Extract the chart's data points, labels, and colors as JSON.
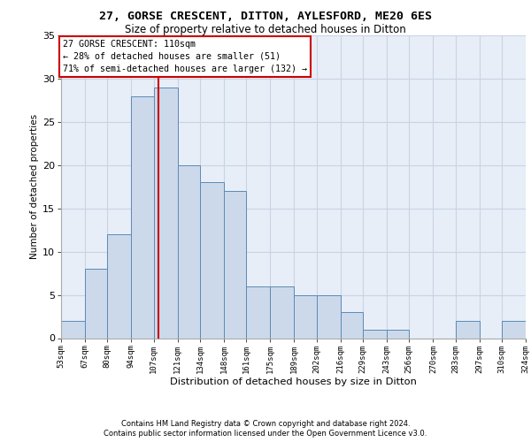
{
  "title1": "27, GORSE CRESCENT, DITTON, AYLESFORD, ME20 6ES",
  "title2": "Size of property relative to detached houses in Ditton",
  "xlabel": "Distribution of detached houses by size in Ditton",
  "ylabel": "Number of detached properties",
  "bar_color": "#ccd9eb",
  "bar_edge_color": "#5b8ab5",
  "grid_color": "#c8d4e4",
  "background_color": "#e8eef8",
  "marker_value": 110,
  "marker_color": "#cc0000",
  "annotation_line1": "27 GORSE CRESCENT: 110sqm",
  "annotation_line2": "← 28% of detached houses are smaller (51)",
  "annotation_line3": "71% of semi-detached houses are larger (132) →",
  "footnote1": "Contains HM Land Registry data © Crown copyright and database right 2024.",
  "footnote2": "Contains public sector information licensed under the Open Government Licence v3.0.",
  "bins": [
    53,
    67,
    80,
    94,
    107,
    121,
    134,
    148,
    161,
    175,
    189,
    202,
    216,
    229,
    243,
    256,
    270,
    283,
    297,
    310,
    324
  ],
  "counts": [
    2,
    8,
    12,
    28,
    29,
    20,
    18,
    17,
    6,
    6,
    5,
    5,
    3,
    1,
    1,
    0,
    0,
    2,
    0,
    2
  ],
  "ylim": [
    0,
    35
  ],
  "yticks": [
    0,
    5,
    10,
    15,
    20,
    25,
    30,
    35
  ]
}
